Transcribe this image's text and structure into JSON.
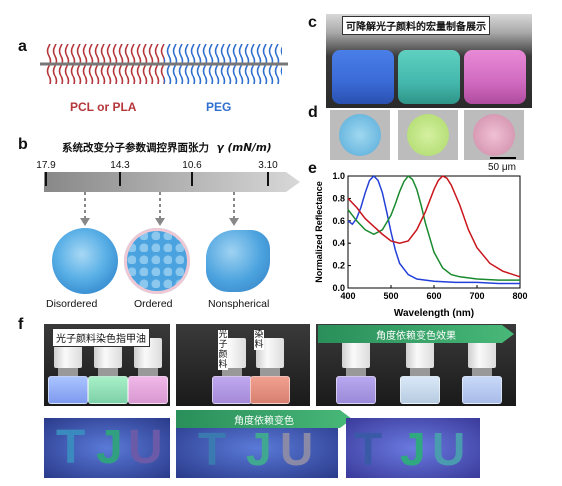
{
  "panels": {
    "a": {
      "letter": "a",
      "left_label": "PCL or PLA",
      "right_label": "PEG"
    },
    "b": {
      "letter": "b",
      "title": "系统改变分子参数调控界面张力",
      "title_symbol": "γ (mN/m)",
      "ticks": [
        "17.9",
        "14.3",
        "10.6",
        "3.10"
      ],
      "morphologies": [
        "Disordered",
        "Ordered",
        "Nonspherical"
      ]
    },
    "c": {
      "letter": "c",
      "caption": "可降解光子颜料的宏量制备展示"
    },
    "d": {
      "letter": "d",
      "scale": "50 μm"
    },
    "e": {
      "letter": "e"
    },
    "f": {
      "letter": "f",
      "polish_label": "光子颜料染色指甲油",
      "bottle_label_1": "光子颜料",
      "bottle_label_2": "染料",
      "arrow_top": "角度依赖变色效果",
      "arrow_bottom": "角度依赖变色",
      "letters": [
        "T",
        "J",
        "U"
      ]
    }
  },
  "colors": {
    "pcl_red": "#b5363b",
    "peg_blue": "#2f6fcf",
    "blue_curve": "#2340d8",
    "green_curve": "#1a8a2e",
    "red_curve": "#c8161c"
  },
  "chart_data": {
    "type": "line",
    "title": "",
    "xlabel": "Wavelength (nm)",
    "ylabel": "Normalized Reflectance",
    "xlim": [
      400,
      800
    ],
    "ylim": [
      0.0,
      1.0
    ],
    "x_ticks": [
      "400",
      "500",
      "600",
      "700",
      "800"
    ],
    "y_ticks": [
      "0.0",
      "0.2",
      "0.4",
      "0.6",
      "0.8",
      "1.0"
    ],
    "series": [
      {
        "color": "blue",
        "x": [
          400,
          410,
          420,
          430,
          440,
          450,
          460,
          470,
          480,
          490,
          500,
          510,
          520,
          540,
          560,
          580,
          600,
          650,
          700,
          750,
          800
        ],
        "y": [
          0.6,
          0.57,
          0.62,
          0.72,
          0.85,
          0.96,
          1.0,
          0.96,
          0.85,
          0.68,
          0.5,
          0.34,
          0.22,
          0.12,
          0.08,
          0.07,
          0.06,
          0.05,
          0.05,
          0.04,
          0.04
        ]
      },
      {
        "color": "green",
        "x": [
          400,
          420,
          440,
          460,
          480,
          500,
          510,
          520,
          530,
          540,
          550,
          560,
          570,
          580,
          600,
          620,
          640,
          660,
          700,
          750,
          800
        ],
        "y": [
          0.7,
          0.6,
          0.52,
          0.48,
          0.52,
          0.65,
          0.75,
          0.86,
          0.95,
          1.0,
          0.97,
          0.88,
          0.74,
          0.58,
          0.32,
          0.18,
          0.12,
          0.1,
          0.08,
          0.07,
          0.07
        ]
      },
      {
        "color": "red",
        "x": [
          400,
          420,
          440,
          460,
          480,
          500,
          520,
          540,
          560,
          580,
          600,
          610,
          620,
          630,
          640,
          660,
          680,
          700,
          730,
          760,
          800
        ],
        "y": [
          0.8,
          0.72,
          0.62,
          0.55,
          0.48,
          0.42,
          0.4,
          0.42,
          0.52,
          0.68,
          0.88,
          0.96,
          1.0,
          0.98,
          0.92,
          0.74,
          0.52,
          0.36,
          0.22,
          0.15,
          0.1
        ]
      }
    ]
  }
}
